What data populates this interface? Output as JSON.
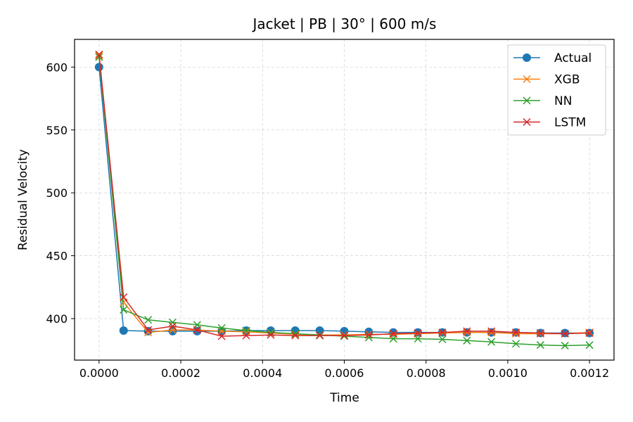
{
  "chart_data": {
    "type": "line",
    "title": "Jacket | PB | 30° | 600 m/s",
    "xlabel": "Time",
    "ylabel": "Residual Velocity",
    "xlim": [
      -6e-05,
      0.00126
    ],
    "ylim": [
      367,
      622
    ],
    "x_ticks": [
      0,
      0.0002,
      0.0004,
      0.0006,
      0.0008,
      0.001,
      0.0012
    ],
    "x_tick_labels": [
      "0.0000",
      "0.0002",
      "0.0004",
      "0.0006",
      "0.0008",
      "0.0010",
      "0.0012"
    ],
    "y_ticks": [
      400,
      450,
      500,
      550,
      600
    ],
    "y_tick_labels": [
      "400",
      "450",
      "500",
      "550",
      "600"
    ],
    "grid": true,
    "legend_position": "top-right",
    "x": [
      0,
      6e-05,
      0.00012,
      0.00018,
      0.00024,
      0.0003,
      0.00036,
      0.00042,
      0.00048,
      0.00054,
      0.0006,
      0.00066,
      0.00072,
      0.00078,
      0.00084,
      0.0009,
      0.00096,
      0.00102,
      0.00108,
      0.00114,
      0.0012
    ],
    "series": [
      {
        "name": "Actual",
        "color": "#1f77b4",
        "marker": "circle",
        "values": [
          600,
          390.5,
          390,
          390,
          390,
          390,
          390.5,
          390.5,
          390.5,
          390.5,
          390,
          389.5,
          389,
          389,
          389,
          389,
          389,
          389,
          388.5,
          388.5,
          388.5
        ]
      },
      {
        "name": "XGB",
        "color": "#ff7f0e",
        "marker": "x",
        "values": [
          609,
          413,
          389,
          391,
          391,
          390,
          389.5,
          388.5,
          387.5,
          387,
          387,
          387.5,
          387.5,
          388,
          388.5,
          389,
          389,
          388,
          388,
          388,
          389
        ]
      },
      {
        "name": "NN",
        "color": "#2ca02c",
        "marker": "x",
        "values": [
          608,
          407,
          399,
          397,
          395,
          392.5,
          390.5,
          389,
          388,
          387,
          386,
          385,
          384,
          384,
          383.5,
          382.5,
          381.5,
          380,
          379,
          378.5,
          379
        ]
      },
      {
        "name": "LSTM",
        "color": "#d62728",
        "marker": "x",
        "values": [
          610,
          417,
          391,
          394,
          391,
          386,
          386.5,
          387,
          386.5,
          386.5,
          386.5,
          387,
          388,
          388.5,
          389,
          390,
          390,
          389,
          388.5,
          388,
          388.5
        ]
      }
    ]
  }
}
